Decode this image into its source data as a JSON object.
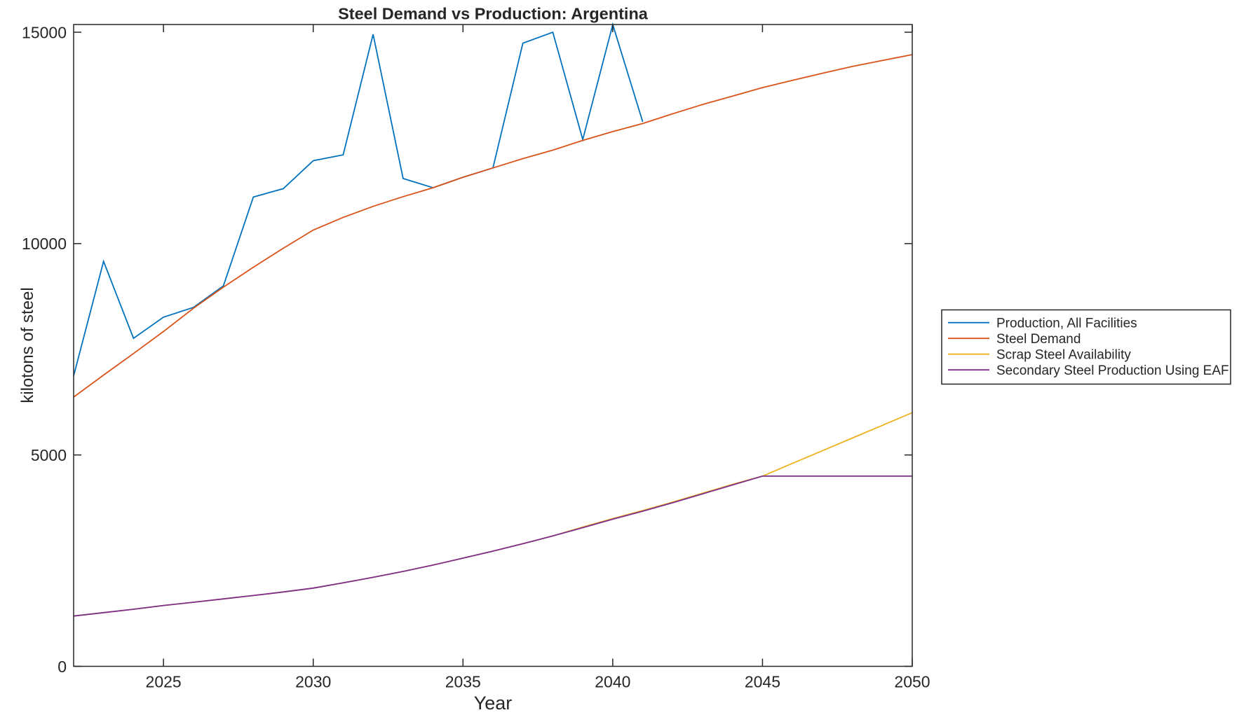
{
  "title": "Steel Demand vs Production: Argentina",
  "axes": {
    "xlabel": "Year",
    "ylabel": "kilotons of steel"
  },
  "chart_data": {
    "type": "line",
    "title": "Steel Demand vs Production: Argentina",
    "xlabel": "Year",
    "ylabel": "kilotons of steel",
    "xlim": [
      2022,
      2050
    ],
    "ylim": [
      0,
      15183
    ],
    "xticks": [
      2025,
      2030,
      2035,
      2040,
      2045,
      2050
    ],
    "yticks": [
      0,
      5000,
      10000,
      15000
    ],
    "grid": false,
    "legend_position": "outside-right",
    "series": [
      {
        "name": "Production, All Facilities",
        "color": "#0072BD",
        "x": [
          2022,
          2023,
          2024,
          2025,
          2026,
          2027,
          2028,
          2029,
          2030,
          2031,
          2032,
          2033,
          2034,
          2035,
          2036,
          2037,
          2038,
          2039,
          2040,
          2041
        ],
        "values": [
          6870,
          9580,
          7760,
          8260,
          8490,
          9000,
          11100,
          11300,
          11960,
          12100,
          14950,
          11540,
          11320,
          11570,
          11790,
          14740,
          15000,
          12460,
          15180,
          12880
        ]
      },
      {
        "name": "Steel Demand",
        "color": "#D95319",
        "x": [
          2022,
          2023,
          2024,
          2025,
          2026,
          2027,
          2028,
          2029,
          2030,
          2031,
          2032,
          2033,
          2034,
          2035,
          2036,
          2037,
          2038,
          2039,
          2040,
          2041,
          2042,
          2043,
          2044,
          2045,
          2046,
          2047,
          2048,
          2049,
          2050
        ],
        "values": [
          6370,
          6890,
          7400,
          7920,
          8470,
          8970,
          9440,
          9890,
          10320,
          10620,
          10880,
          11110,
          11320,
          11570,
          11790,
          12010,
          12210,
          12440,
          12650,
          12840,
          13070,
          13290,
          13490,
          13690,
          13860,
          14030,
          14190,
          14330,
          14470
        ]
      },
      {
        "name": "Scrap Steel Availability",
        "color": "#EDB120",
        "x": [
          2022,
          2023,
          2024,
          2025,
          2026,
          2027,
          2028,
          2029,
          2030,
          2031,
          2032,
          2033,
          2034,
          2035,
          2036,
          2037,
          2038,
          2039,
          2040,
          2041,
          2042,
          2043,
          2044,
          2045,
          2046,
          2047,
          2048,
          2049,
          2050
        ],
        "values": [
          1190,
          1270,
          1350,
          1440,
          1515,
          1595,
          1675,
          1760,
          1850,
          1975,
          2105,
          2245,
          2395,
          2560,
          2725,
          2900,
          3085,
          3295,
          3495,
          3685,
          3885,
          4095,
          4305,
          4500,
          4800,
          5100,
          5400,
          5700,
          6000
        ]
      },
      {
        "name": "Secondary Steel Production Using EAF",
        "color": "#7E2F8E",
        "x": [
          2022,
          2023,
          2024,
          2025,
          2026,
          2027,
          2028,
          2029,
          2030,
          2031,
          2032,
          2033,
          2034,
          2035,
          2036,
          2037,
          2038,
          2039,
          2040,
          2041,
          2042,
          2043,
          2044,
          2045,
          2046,
          2047,
          2048,
          2049,
          2050
        ],
        "values": [
          1190,
          1270,
          1350,
          1440,
          1515,
          1595,
          1675,
          1760,
          1850,
          1975,
          2105,
          2245,
          2395,
          2560,
          2725,
          2900,
          3085,
          3280,
          3480,
          3670,
          3870,
          4080,
          4290,
          4500,
          4500,
          4500,
          4500,
          4500,
          4500
        ]
      }
    ]
  }
}
